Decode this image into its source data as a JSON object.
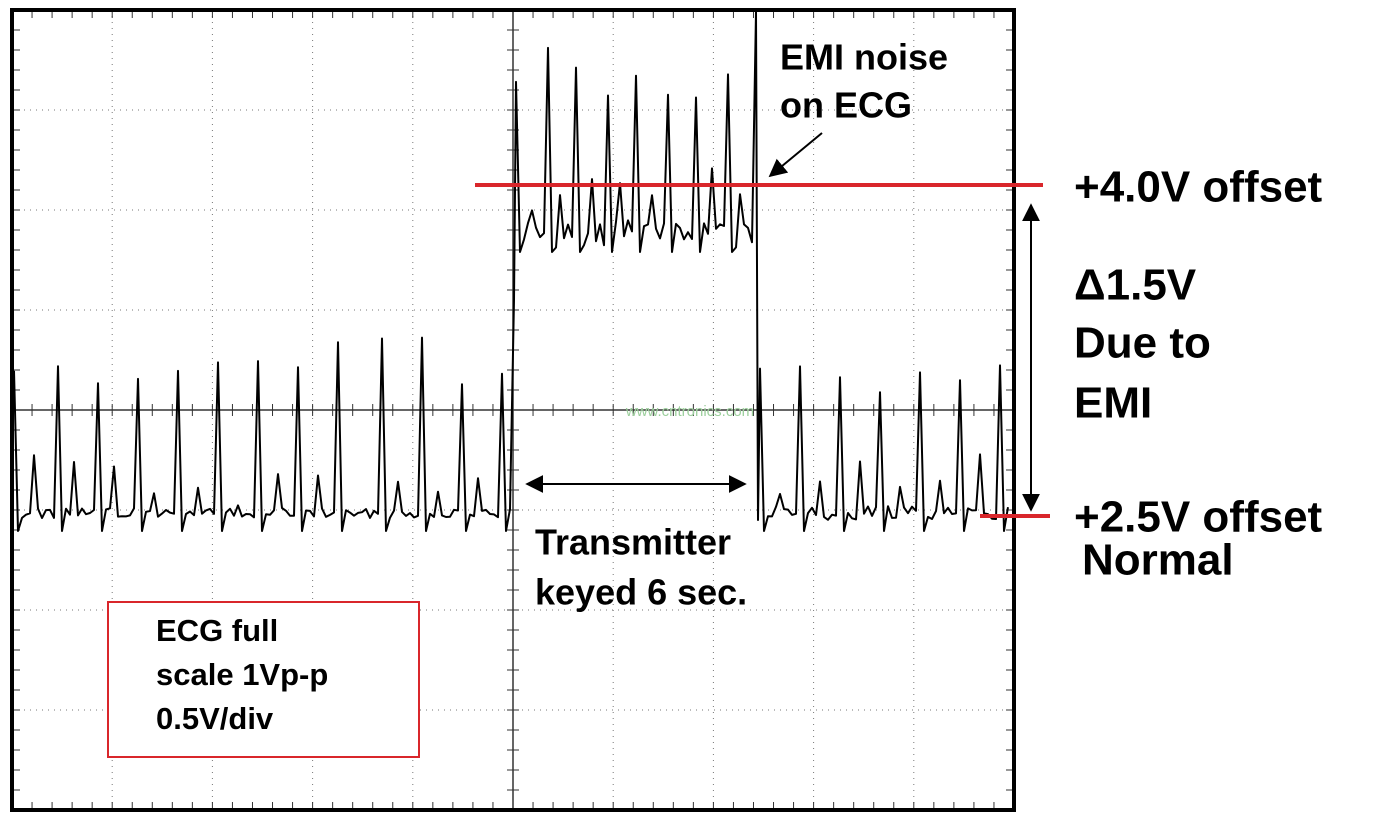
{
  "annotations": {
    "emi_noise": [
      "EMI noise",
      "on ECG"
    ],
    "offset_high": "+4.0V offset",
    "delta": [
      "Δ1.5V",
      "Due to",
      "EMI"
    ],
    "offset_low": "+2.5V offset",
    "normal": "Normal",
    "transmitter": [
      "Transmitter",
      "keyed 6 sec."
    ],
    "scale_box": [
      "ECG full",
      "scale 1Vp-p",
      "0.5V/div"
    ],
    "watermark": "www.cntronics.com"
  }
}
